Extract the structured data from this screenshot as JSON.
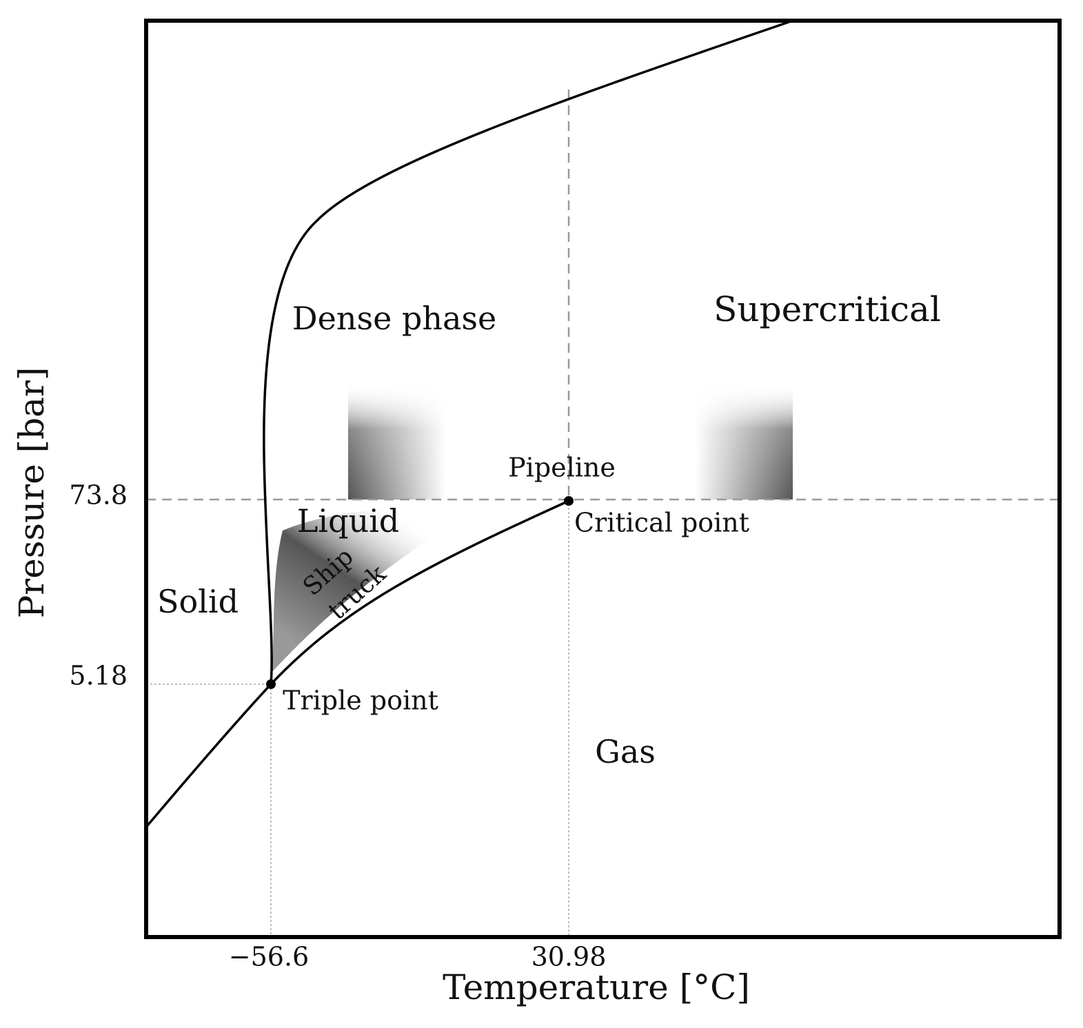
{
  "axes": {
    "x_label": "Temperature [°C]",
    "y_label": "Pressure [bar]",
    "x_ticks": [
      "−56.6",
      "30.98"
    ],
    "y_ticks": [
      "73.8",
      "5.18"
    ]
  },
  "regions": {
    "dense_phase": "Dense phase",
    "supercritical": "Supercritical",
    "liquid": "Liquid",
    "solid": "Solid",
    "gas": "Gas"
  },
  "annotations": {
    "pipeline": "Pipeline",
    "ship": "Ship",
    "truck": "truck",
    "critical_point": "Critical point",
    "triple_point": "Triple point"
  }
}
